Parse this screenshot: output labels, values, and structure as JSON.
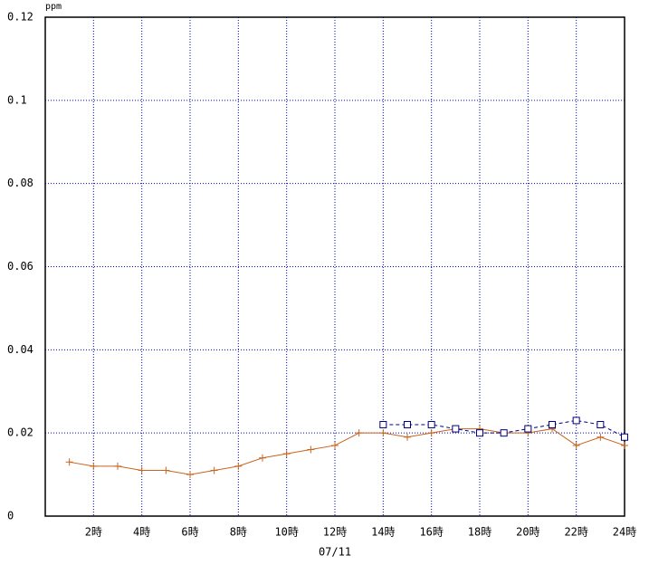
{
  "chart_data": {
    "type": "line",
    "y_unit": "ppm",
    "xlabel": "07/11",
    "x": [
      1,
      2,
      3,
      4,
      5,
      6,
      7,
      8,
      9,
      10,
      11,
      12,
      13,
      14,
      15,
      16,
      17,
      18,
      19,
      20,
      21,
      22,
      23,
      24
    ],
    "series": [
      {
        "color": "#c8641e",
        "marker": "plus",
        "dashed": false,
        "values": [
          0.013,
          0.012,
          0.012,
          0.011,
          0.011,
          0.01,
          0.011,
          0.012,
          0.014,
          0.015,
          0.016,
          0.017,
          0.02,
          0.02,
          0.019,
          0.02,
          0.021,
          0.021,
          0.02,
          0.02,
          0.021,
          0.017,
          0.019,
          0.017
        ]
      },
      {
        "color": "#000080",
        "marker": "square",
        "dashed": true,
        "values": [
          null,
          null,
          null,
          null,
          null,
          null,
          null,
          null,
          null,
          null,
          null,
          null,
          null,
          0.022,
          0.022,
          0.022,
          0.021,
          0.02,
          0.02,
          0.021,
          0.022,
          0.023,
          0.022,
          0.019
        ]
      }
    ],
    "xlim": [
      0,
      24
    ],
    "xticks": [
      {
        "value": 2,
        "label": "2時"
      },
      {
        "value": 4,
        "label": "4時"
      },
      {
        "value": 6,
        "label": "6時"
      },
      {
        "value": 8,
        "label": "8時"
      },
      {
        "value": 10,
        "label": "10時"
      },
      {
        "value": 12,
        "label": "12時"
      },
      {
        "value": 14,
        "label": "14時"
      },
      {
        "value": 16,
        "label": "16時"
      },
      {
        "value": 18,
        "label": "18時"
      },
      {
        "value": 20,
        "label": "20時"
      },
      {
        "value": 22,
        "label": "22時"
      },
      {
        "value": 24,
        "label": "24時"
      }
    ],
    "ylim": [
      0,
      0.12
    ],
    "yticks": [
      0,
      0.02,
      0.04,
      0.06,
      0.08,
      0.1,
      0.12
    ],
    "grid": true,
    "grid_color": "#0000cc"
  }
}
